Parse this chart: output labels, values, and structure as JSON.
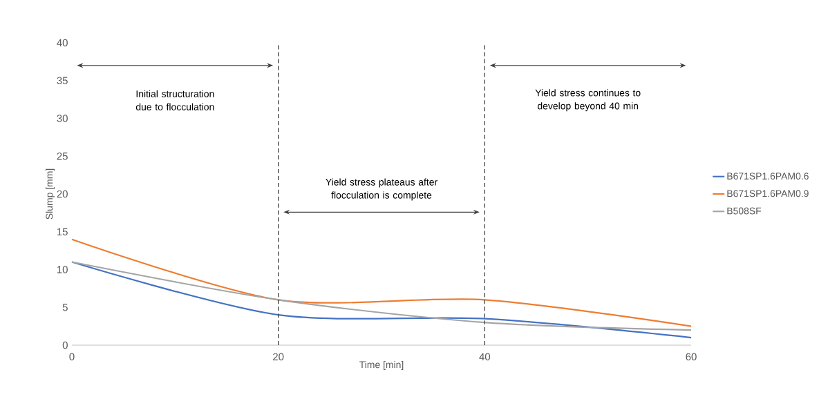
{
  "chart_data": {
    "type": "line",
    "xlabel": "Time [min]",
    "ylabel": "Slump [mm]",
    "x": [
      0,
      20,
      40,
      60
    ],
    "series": [
      {
        "name": "B671SP1.6PAM0.6",
        "color": "#4472c4",
        "values": [
          11,
          4,
          3.5,
          1
        ]
      },
      {
        "name": "B671SP1.6PAM0.9",
        "color": "#ed7d31",
        "values": [
          14,
          6,
          6,
          2.5
        ]
      },
      {
        "name": "B508SF",
        "color": "#a5a5a5",
        "values": [
          11,
          6,
          3,
          2
        ]
      }
    ],
    "xlim": [
      0,
      60
    ],
    "xticks": [
      0,
      20,
      40,
      60
    ],
    "ylim": [
      0,
      40
    ],
    "yticks": [
      0,
      5,
      10,
      15,
      20,
      25,
      30,
      35,
      40
    ],
    "ref_lines": [
      {
        "axis": "x",
        "value": 20,
        "line_style": "dashed"
      },
      {
        "axis": "x",
        "value": 40,
        "line_style": "dashed"
      }
    ],
    "annotations": [
      "Initial structuration due to flocculation",
      "Yield stress plateaus after flocculation is complete",
      "Yield stress continues to develop beyond 40 min"
    ],
    "legend": "right",
    "grid": false,
    "marker": "none",
    "line_style": "solid"
  }
}
